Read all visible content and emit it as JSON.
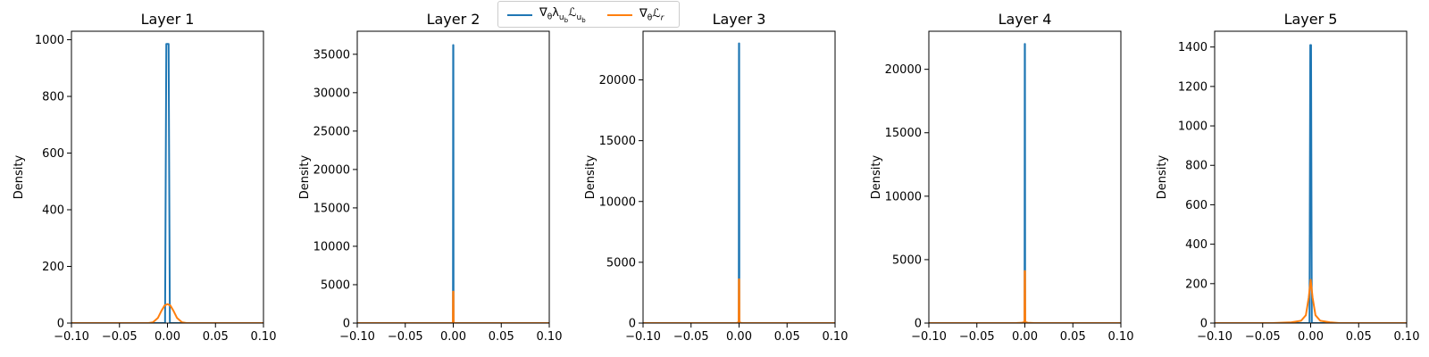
{
  "colors": {
    "series_a": "#1f77b4",
    "series_b": "#ff7f0e"
  },
  "legend": [
    {
      "label": "∇θλubℒub",
      "color": "#1f77b4"
    },
    {
      "label": "∇θℒr",
      "color": "#ff7f0e"
    }
  ],
  "legend_placement": "top-center",
  "chart_data": [
    {
      "type": "line",
      "title": "Layer 1",
      "xlabel": "",
      "ylabel": "Density",
      "xlim": [
        -0.1,
        0.1
      ],
      "ylim": [
        0,
        1030
      ],
      "xticks": [
        -0.1,
        -0.05,
        0.0,
        0.05,
        0.1
      ],
      "xtick_labels": [
        "−0.10",
        "−0.05",
        "0.00",
        "0.05",
        "0.10"
      ],
      "yticks": [
        0,
        200,
        400,
        600,
        800,
        1000
      ],
      "grid": false,
      "series": [
        {
          "name": "∇θλubℒub",
          "x": [
            -0.1,
            -0.0025,
            -0.0012,
            0.0,
            0.0012,
            0.0025,
            0.1
          ],
          "y": [
            0,
            0,
            985,
            985,
            985,
            0,
            0
          ]
        },
        {
          "name": "∇θℒr",
          "x": [
            -0.1,
            -0.02,
            -0.015,
            -0.01,
            -0.006,
            -0.003,
            0.0,
            0.003,
            0.006,
            0.01,
            0.015,
            0.02,
            0.1
          ],
          "y": [
            0,
            0,
            3,
            18,
            45,
            62,
            67,
            62,
            45,
            18,
            3,
            0,
            0
          ]
        }
      ]
    },
    {
      "type": "line",
      "title": "Layer 2",
      "xlabel": "",
      "ylabel": "Density",
      "xlim": [
        -0.1,
        0.1
      ],
      "ylim": [
        0,
        38000
      ],
      "xticks": [
        -0.1,
        -0.05,
        0.0,
        0.05,
        0.1
      ],
      "xtick_labels": [
        "−0.10",
        "−0.05",
        "0.00",
        "0.05",
        "0.10"
      ],
      "yticks": [
        0,
        5000,
        10000,
        15000,
        20000,
        25000,
        30000,
        35000
      ],
      "grid": false,
      "series": [
        {
          "name": "∇θλubℒub",
          "x": [
            -0.1,
            -0.0003,
            -0.0001,
            0.0,
            0.0001,
            0.0003,
            0.1
          ],
          "y": [
            0,
            0,
            36200,
            36200,
            36200,
            0,
            0
          ]
        },
        {
          "name": "∇θℒr",
          "x": [
            -0.1,
            -0.0004,
            -0.0002,
            0.0,
            0.0002,
            0.0004,
            0.1
          ],
          "y": [
            0,
            0,
            4100,
            4100,
            4100,
            0,
            0
          ]
        }
      ]
    },
    {
      "type": "line",
      "title": "Layer 3",
      "xlabel": "",
      "ylabel": "Density",
      "xlim": [
        -0.1,
        0.1
      ],
      "ylim": [
        0,
        24000
      ],
      "xticks": [
        -0.1,
        -0.05,
        0.0,
        0.05,
        0.1
      ],
      "xtick_labels": [
        "−0.10",
        "−0.05",
        "0.00",
        "0.05",
        "0.10"
      ],
      "yticks": [
        0,
        5000,
        10000,
        15000,
        20000
      ],
      "grid": false,
      "series": [
        {
          "name": "∇θλubℒub",
          "x": [
            -0.1,
            -0.0003,
            -0.0001,
            0.0,
            0.0001,
            0.0003,
            0.1
          ],
          "y": [
            0,
            0,
            23000,
            23000,
            23000,
            0,
            0
          ]
        },
        {
          "name": "∇θℒr",
          "x": [
            -0.1,
            -0.003,
            -0.0004,
            -0.0002,
            0.0,
            0.0002,
            0.0004,
            0.003,
            0.1
          ],
          "y": [
            0,
            0,
            60,
            3600,
            3600,
            3600,
            60,
            0,
            0
          ]
        }
      ]
    },
    {
      "type": "line",
      "title": "Layer 4",
      "xlabel": "",
      "ylabel": "Density",
      "xlim": [
        -0.1,
        0.1
      ],
      "ylim": [
        0,
        23000
      ],
      "xticks": [
        -0.1,
        -0.05,
        0.0,
        0.05,
        0.1
      ],
      "xtick_labels": [
        "−0.10",
        "−0.05",
        "0.00",
        "0.05",
        "0.10"
      ],
      "yticks": [
        0,
        5000,
        10000,
        15000,
        20000
      ],
      "grid": false,
      "series": [
        {
          "name": "∇θλubℒub",
          "x": [
            -0.1,
            -0.0003,
            -0.0001,
            0.0,
            0.0001,
            0.0003,
            0.1
          ],
          "y": [
            0,
            0,
            22000,
            22000,
            22000,
            0,
            0
          ]
        },
        {
          "name": "∇θℒr",
          "x": [
            -0.1,
            -0.01,
            -0.003,
            -0.0004,
            -0.0002,
            0.0,
            0.0002,
            0.0004,
            0.003,
            0.01,
            0.1
          ],
          "y": [
            0,
            0,
            30,
            80,
            4100,
            4100,
            4100,
            80,
            30,
            0,
            0
          ]
        }
      ]
    },
    {
      "type": "line",
      "title": "Layer 5",
      "xlabel": "",
      "ylabel": "Density",
      "xlim": [
        -0.1,
        0.1
      ],
      "ylim": [
        0,
        1480
      ],
      "xticks": [
        -0.1,
        -0.05,
        0.0,
        0.05,
        0.1
      ],
      "xtick_labels": [
        "−0.10",
        "−0.05",
        "0.00",
        "0.05",
        "0.10"
      ],
      "yticks": [
        0,
        200,
        400,
        600,
        800,
        1000,
        1200,
        1400
      ],
      "grid": false,
      "series": [
        {
          "name": "∇θλubℒub",
          "x": [
            -0.1,
            -0.0012,
            -0.0004,
            0.0,
            0.0004,
            0.0012,
            0.1
          ],
          "y": [
            0,
            0,
            1410,
            1410,
            1410,
            0,
            0
          ]
        },
        {
          "name": "∇θℒr",
          "x": [
            -0.1,
            -0.04,
            -0.02,
            -0.01,
            -0.005,
            -0.002,
            0.0,
            0.002,
            0.005,
            0.01,
            0.02,
            0.03,
            0.1
          ],
          "y": [
            0,
            0,
            4,
            12,
            40,
            130,
            220,
            130,
            40,
            12,
            4,
            0,
            0
          ]
        }
      ]
    }
  ]
}
